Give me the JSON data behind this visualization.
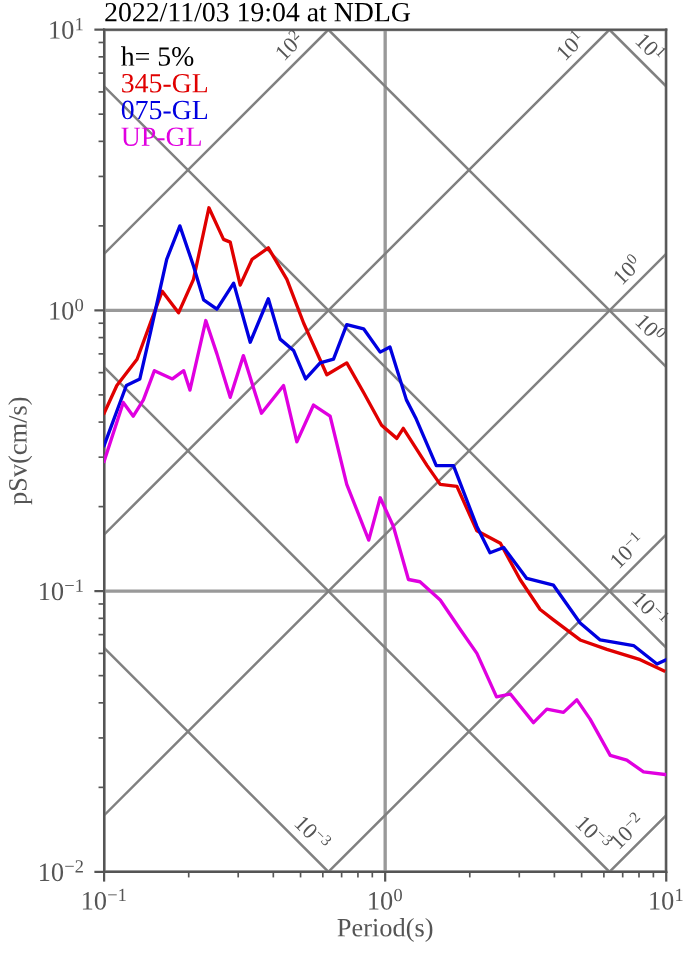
{
  "chart_data": {
    "type": "line",
    "title": "2022/11/03 19:04 at NDLG",
    "xlabel": "Period(s)",
    "ylabel": "pSv(cm/s)",
    "legend_title": "h= 5%",
    "legend": "top left",
    "log": "xy",
    "grid": true,
    "xlim": [
      0.1,
      10
    ],
    "ylim": [
      0.01,
      10
    ],
    "xticks": [
      {
        "value": 0.1,
        "label": "10$^{−1}$"
      },
      {
        "value": 1,
        "label": "10$^{0}$"
      },
      {
        "value": 10,
        "label": "10$^{1}$"
      }
    ],
    "yticks": [
      {
        "value": 0.01,
        "label": "10$^{−2}$"
      },
      {
        "value": 0.1,
        "label": "10$^{−1}$"
      },
      {
        "value": 1,
        "label": "10$^{0}$"
      },
      {
        "value": 10,
        "label": "10$^{1}$"
      }
    ],
    "series": [
      {
        "name": "10$^{1}$",
        "color": "#808080",
        "x": [
          6.28,
          10
        ],
        "values": [
          10,
          6.28
        ]
      },
      {
        "name": "10$^{0}$",
        "color": "#808080",
        "x": [
          0.628,
          10
        ],
        "values": [
          10,
          0.628
        ]
      },
      {
        "name": "10$^{−1}$",
        "color": "#808080",
        "x": [
          0.1,
          10
        ],
        "values": [
          6.28,
          0.0628
        ]
      },
      {
        "name": "10$^{−3}$",
        "color": "#808080",
        "x": [
          0.1,
          6.28
        ],
        "values": [
          0.628,
          0.01
        ]
      },
      {
        "name": "10$^{−3}$",
        "color": "#808080",
        "x": [
          0.1,
          0.628
        ],
        "values": [
          0.0628,
          0.01
        ]
      },
      {
        "name": "10$^{2}$",
        "color": "#808080",
        "x": [
          0.1,
          0.628
        ],
        "values": [
          1.59,
          10
        ]
      },
      {
        "name": "10$^{1}$",
        "color": "#808080",
        "x": [
          0.1,
          6.28
        ],
        "values": [
          0.159,
          10
        ]
      },
      {
        "name": "10$^{0}$",
        "color": "#808080",
        "x": [
          0.1,
          10
        ],
        "values": [
          0.0159,
          1.59
        ]
      },
      {
        "name": "10$^{−1}$",
        "color": "#808080",
        "x": [
          0.628,
          10
        ],
        "values": [
          0.01,
          0.159
        ]
      },
      {
        "name": "10$^{−2}$",
        "color": "#808080",
        "x": [
          6.28,
          10
        ],
        "values": [
          0.01,
          0.0159
        ]
      },
      {
        "name": "345-GL",
        "color": "#e00000",
        "x": [
          0.1,
          0.111,
          0.131,
          0.146,
          0.161,
          0.184,
          0.208,
          0.236,
          0.266,
          0.281,
          0.305,
          0.336,
          0.384,
          0.447,
          0.513,
          0.62,
          0.73,
          0.838,
          0.971,
          1.1,
          1.16,
          1.41,
          1.57,
          1.8,
          2.12,
          2.57,
          3.02,
          3.56,
          3.97,
          4.94,
          6.15,
          8.08,
          9.8
        ],
        "values": [
          0.43,
          0.54,
          0.67,
          0.9,
          1.17,
          0.98,
          1.29,
          2.32,
          1.79,
          1.75,
          1.23,
          1.52,
          1.67,
          1.29,
          0.9,
          0.59,
          0.65,
          0.51,
          0.39,
          0.35,
          0.38,
          0.28,
          0.24,
          0.236,
          0.164,
          0.148,
          0.11,
          0.086,
          0.079,
          0.067,
          0.062,
          0.057,
          0.052
        ]
      },
      {
        "name": "075-GL",
        "color": "#0000e0",
        "x": [
          0.1,
          0.12,
          0.134,
          0.146,
          0.167,
          0.186,
          0.208,
          0.226,
          0.252,
          0.289,
          0.331,
          0.384,
          0.423,
          0.472,
          0.521,
          0.587,
          0.655,
          0.73,
          0.838,
          0.96,
          1.04,
          1.19,
          1.29,
          1.52,
          1.75,
          2.12,
          2.36,
          2.64,
          3.19,
          3.97,
          4.94,
          5.82,
          7.65,
          9.27,
          10
        ],
        "values": [
          0.33,
          0.54,
          0.57,
          0.83,
          1.52,
          2.0,
          1.44,
          1.09,
          1.01,
          1.25,
          0.77,
          1.1,
          0.79,
          0.72,
          0.57,
          0.65,
          0.67,
          0.89,
          0.86,
          0.71,
          0.74,
          0.48,
          0.41,
          0.28,
          0.28,
          0.17,
          0.137,
          0.143,
          0.111,
          0.105,
          0.077,
          0.067,
          0.064,
          0.055,
          0.057
        ]
      },
      {
        "name": "UP-GL",
        "color": "#e000e0",
        "x": [
          0.1,
          0.117,
          0.127,
          0.138,
          0.151,
          0.175,
          0.192,
          0.202,
          0.23,
          0.252,
          0.281,
          0.313,
          0.363,
          0.435,
          0.485,
          0.556,
          0.637,
          0.73,
          0.874,
          0.96,
          1.07,
          1.21,
          1.33,
          1.57,
          1.85,
          2.12,
          2.49,
          2.79,
          3.37,
          3.76,
          4.31,
          4.81,
          5.36,
          6.32,
          7.24,
          8.3,
          10
        ],
        "values": [
          0.29,
          0.47,
          0.42,
          0.48,
          0.61,
          0.57,
          0.61,
          0.52,
          0.92,
          0.7,
          0.49,
          0.69,
          0.43,
          0.54,
          0.34,
          0.46,
          0.42,
          0.24,
          0.152,
          0.215,
          0.17,
          0.11,
          0.108,
          0.093,
          0.073,
          0.06,
          0.042,
          0.043,
          0.034,
          0.038,
          0.037,
          0.041,
          0.035,
          0.026,
          0.025,
          0.0227,
          0.0222
        ]
      }
    ]
  }
}
